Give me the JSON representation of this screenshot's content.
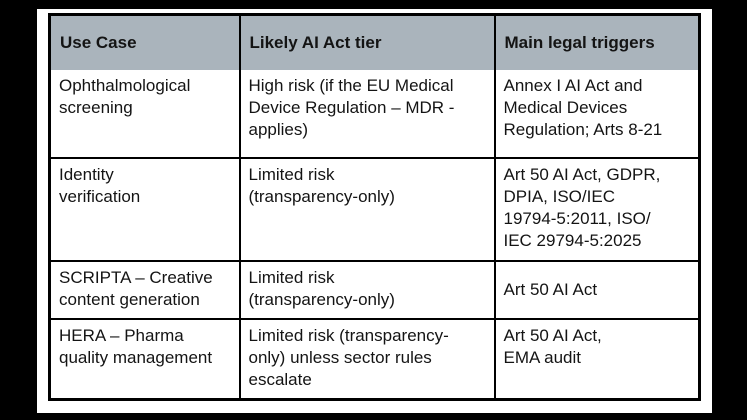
{
  "page": {
    "frame_color": "#000000",
    "paper_color": "#ffffff"
  },
  "table": {
    "style": {
      "header_bg": "#aab4bc",
      "border_color": "#000000",
      "text_color": "#141414"
    },
    "columns": [
      "Use Case",
      "Likely AI Act tier",
      "Main legal triggers"
    ],
    "rows": [
      {
        "use_case": "Ophthalmological\nscreening",
        "tier": "High risk (if the EU Medical\nDevice Regulation – MDR -\napplies)",
        "triggers": "Annex I AI Act and\nMedical Devices\nRegulation; Arts 8-21"
      },
      {
        "use_case": "Identity\nverification",
        "tier": "Limited risk\n(transparency-only)",
        "triggers": "Art 50 AI Act, GDPR,\nDPIA, ISO/IEC\n19794-5:2011, ISO/\nIEC 29794-5:2025"
      },
      {
        "use_case": "SCRIPTA – Creative\ncontent generation",
        "tier": "Limited risk\n(transparency-only)",
        "triggers": "Art 50 AI Act"
      },
      {
        "use_case": "HERA – Pharma\nquality management",
        "tier": "Limited risk (transparency-\nonly) unless sector rules\nescalate",
        "triggers": "Art 50 AI Act,\nEMA audit"
      }
    ]
  }
}
